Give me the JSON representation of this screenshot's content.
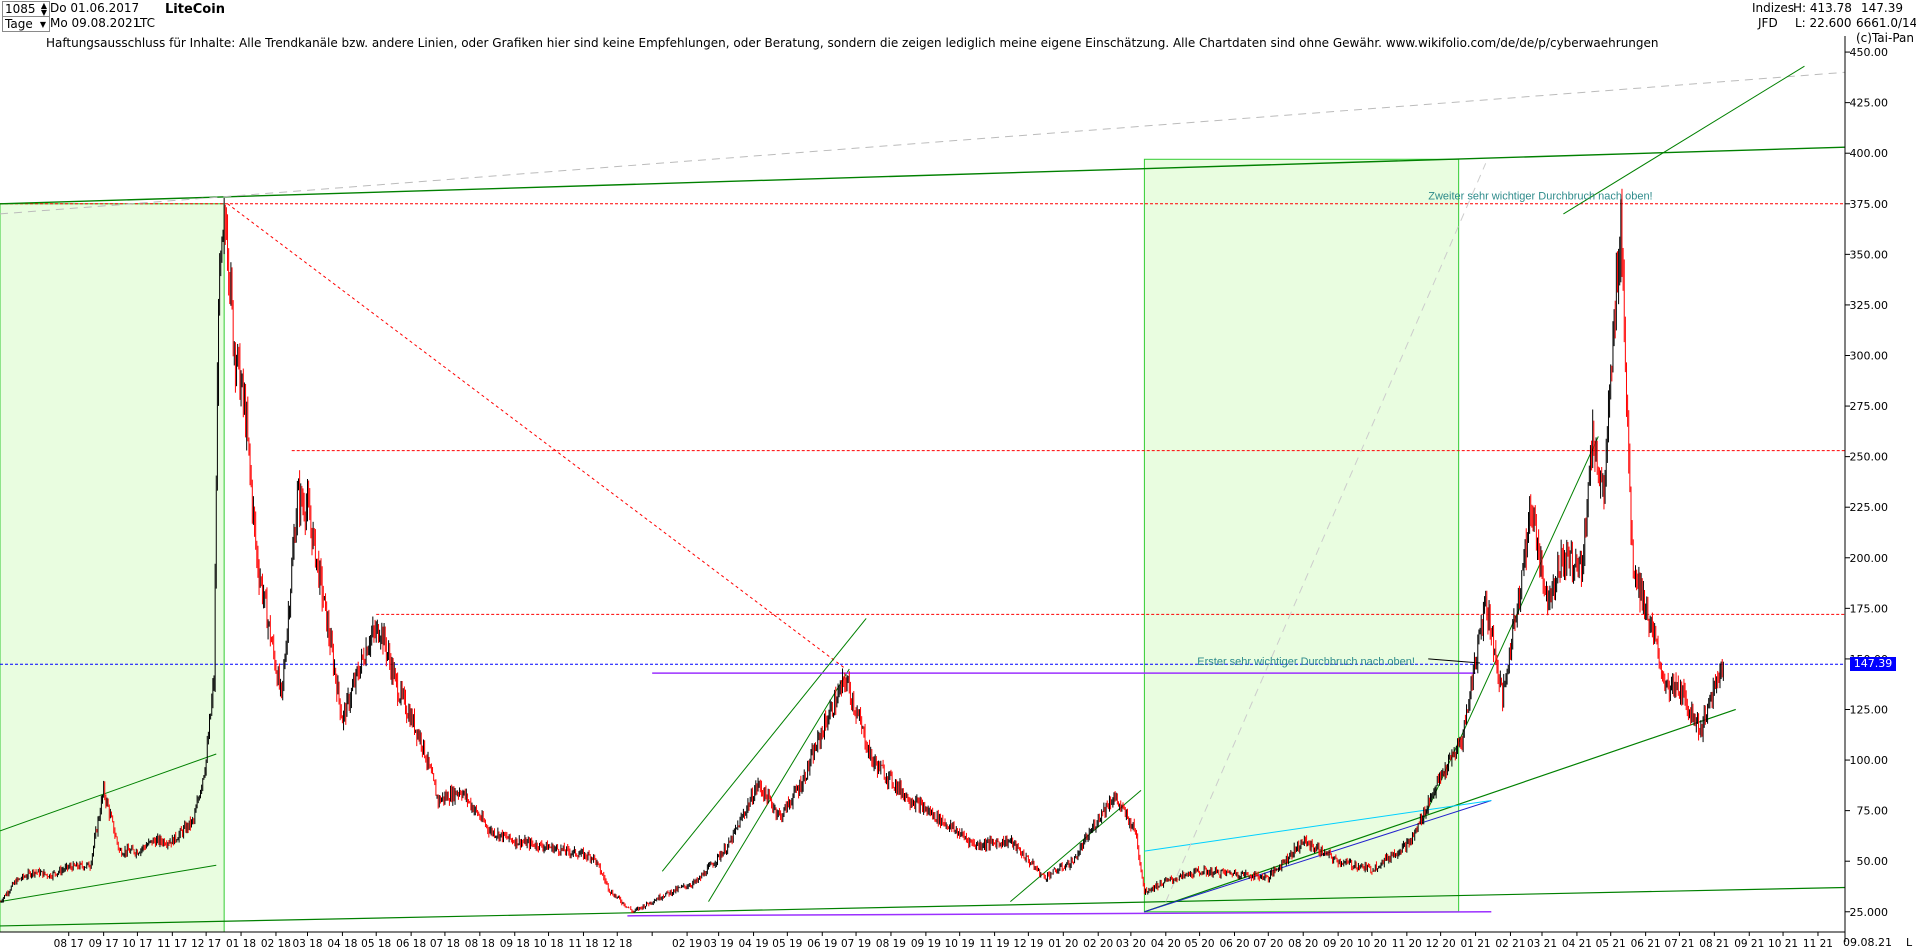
{
  "header": {
    "bar_count": "1085",
    "period": "Tage",
    "date_from": "Do 01.06.2017",
    "date_to": "Mo 09.08.2021",
    "symbol": "LTC",
    "title": "LiteCoin",
    "right_cat": "Indizes",
    "right_source": "JFD",
    "high_label": "H: 413.78",
    "low_label": "L: 22.600",
    "last_price": "147.39",
    "counter": "6661.0/14",
    "copyright": "(c)Tai-Pan"
  },
  "disclaimer": "Haftungsausschluss für Inhalte: Alle Trendkanäle bzw. andere Linien, oder Grafiken hier sind keine Empfehlungen, oder Beratung, sondern die zeigen lediglich meine eigene Einschätzung. Alle Chartdaten sind ohne Gewähr.  www.wikifolio.com/de/de/p/cyberwaehrungen",
  "annotations": {
    "first_breakout": "Erster sehr wichtiger Durchbruch nach oben!",
    "second_breakout": "Zweiter sehr wichtiger Durchbruch nach oben!"
  },
  "bottom": {
    "end_date": "09.08.21",
    "corner": "L"
  },
  "colors": {
    "up": "#000000",
    "down": "#ff0000",
    "trend": "#008000",
    "zone": "#e9fde0",
    "resistance": "#ff0000",
    "current": "#0000ff",
    "purple": "#9b30ff",
    "cyan": "#00d0ff",
    "annotation": "#2e8b8b"
  },
  "chart_data": {
    "type": "candlestick",
    "title": "LiteCoin",
    "y_ticks": [
      "25.000",
      "50.00",
      "75.00",
      "100.00",
      "125.00",
      "150.00",
      "175.00",
      "200.00",
      "225.00",
      "250.00",
      "275.00",
      "300.00",
      "325.00",
      "350.00",
      "375.00",
      "400.00",
      "425.00",
      "450.00"
    ],
    "ylim": [
      15,
      453
    ],
    "x_ticks": [
      "08 17",
      "09 17",
      "10 17",
      "11 17",
      "12 17",
      "01 18",
      "02 18",
      "03 18",
      "04 18",
      "05 18",
      "06 18",
      "07 18",
      "08 18",
      "09 18",
      "10 18",
      "11 18",
      "12 18",
      "02 19",
      "03 19",
      "04 19",
      "05 19",
      "06 19",
      "07 19",
      "08 19",
      "09 19",
      "10 19",
      "11 19",
      "12 19",
      "01 20",
      "02 20",
      "03 20",
      "04 20",
      "05 20",
      "06 20",
      "07 20",
      "08 20",
      "09 20",
      "10 20",
      "11 20",
      "12 20",
      "01 21",
      "02 21",
      "03 21",
      "04 21",
      "05 21",
      "06 21",
      "07 21",
      "08 21",
      "09 21",
      "10 21",
      "11 21"
    ],
    "price_path": [
      [
        "2017-06-01",
        30
      ],
      [
        "2017-06-15",
        40
      ],
      [
        "2017-07-01",
        45
      ],
      [
        "2017-07-15",
        43
      ],
      [
        "2017-08-01",
        47
      ],
      [
        "2017-08-20",
        48
      ],
      [
        "2017-09-01",
        85
      ],
      [
        "2017-09-15",
        55
      ],
      [
        "2017-10-01",
        55
      ],
      [
        "2017-10-15",
        60
      ],
      [
        "2017-11-01",
        60
      ],
      [
        "2017-11-20",
        70
      ],
      [
        "2017-12-01",
        100
      ],
      [
        "2017-12-08",
        140
      ],
      [
        "2017-12-12",
        330
      ],
      [
        "2017-12-19",
        370
      ],
      [
        "2017-12-25",
        310
      ],
      [
        "2018-01-05",
        270
      ],
      [
        "2018-01-15",
        200
      ],
      [
        "2018-02-06",
        130
      ],
      [
        "2018-02-20",
        230
      ],
      [
        "2018-03-01",
        225
      ],
      [
        "2018-03-15",
        180
      ],
      [
        "2018-04-01",
        120
      ],
      [
        "2018-04-25",
        160
      ],
      [
        "2018-05-05",
        165
      ],
      [
        "2018-05-20",
        135
      ],
      [
        "2018-06-10",
        110
      ],
      [
        "2018-06-25",
        80
      ],
      [
        "2018-07-15",
        85
      ],
      [
        "2018-08-10",
        65
      ],
      [
        "2018-09-01",
        60
      ],
      [
        "2018-10-01",
        57
      ],
      [
        "2018-11-10",
        52
      ],
      [
        "2018-11-25",
        35
      ],
      [
        "2018-12-15",
        25
      ],
      [
        "2019-01-10",
        33
      ],
      [
        "2019-02-10",
        40
      ],
      [
        "2019-03-10",
        58
      ],
      [
        "2019-04-05",
        88
      ],
      [
        "2019-04-25",
        72
      ],
      [
        "2019-05-15",
        90
      ],
      [
        "2019-06-05",
        120
      ],
      [
        "2019-06-22",
        140
      ],
      [
        "2019-07-15",
        100
      ],
      [
        "2019-08-15",
        82
      ],
      [
        "2019-09-15",
        70
      ],
      [
        "2019-10-15",
        58
      ],
      [
        "2019-11-15",
        60
      ],
      [
        "2019-12-15",
        42
      ],
      [
        "2020-01-10",
        50
      ],
      [
        "2020-02-05",
        75
      ],
      [
        "2020-02-15",
        82
      ],
      [
        "2020-03-05",
        65
      ],
      [
        "2020-03-13",
        35
      ],
      [
        "2020-04-01",
        40
      ],
      [
        "2020-05-01",
        45
      ],
      [
        "2020-06-01",
        44
      ],
      [
        "2020-07-01",
        42
      ],
      [
        "2020-08-01",
        60
      ],
      [
        "2020-09-01",
        50
      ],
      [
        "2020-10-01",
        46
      ],
      [
        "2020-11-05",
        60
      ],
      [
        "2020-11-25",
        85
      ],
      [
        "2020-12-20",
        110
      ],
      [
        "2021-01-10",
        180
      ],
      [
        "2021-01-25",
        130
      ],
      [
        "2021-02-20",
        225
      ],
      [
        "2021-03-05",
        180
      ],
      [
        "2021-03-20",
        200
      ],
      [
        "2021-04-05",
        195
      ],
      [
        "2021-04-15",
        260
      ],
      [
        "2021-04-25",
        230
      ],
      [
        "2021-05-10",
        370
      ],
      [
        "2021-05-20",
        200
      ],
      [
        "2021-06-01",
        175
      ],
      [
        "2021-06-20",
        135
      ],
      [
        "2021-07-01",
        135
      ],
      [
        "2021-07-20",
        115
      ],
      [
        "2021-08-01",
        135
      ],
      [
        "2021-08-09",
        147.39
      ]
    ],
    "horizontal_levels": [
      {
        "kind": "resistance",
        "value": 375
      },
      {
        "kind": "resistance",
        "value": 253
      },
      {
        "kind": "resistance",
        "value": 172
      },
      {
        "kind": "current",
        "value": 147.39
      }
    ],
    "high": 413.78,
    "low": 22.6,
    "last": 147.39,
    "grid": false
  }
}
